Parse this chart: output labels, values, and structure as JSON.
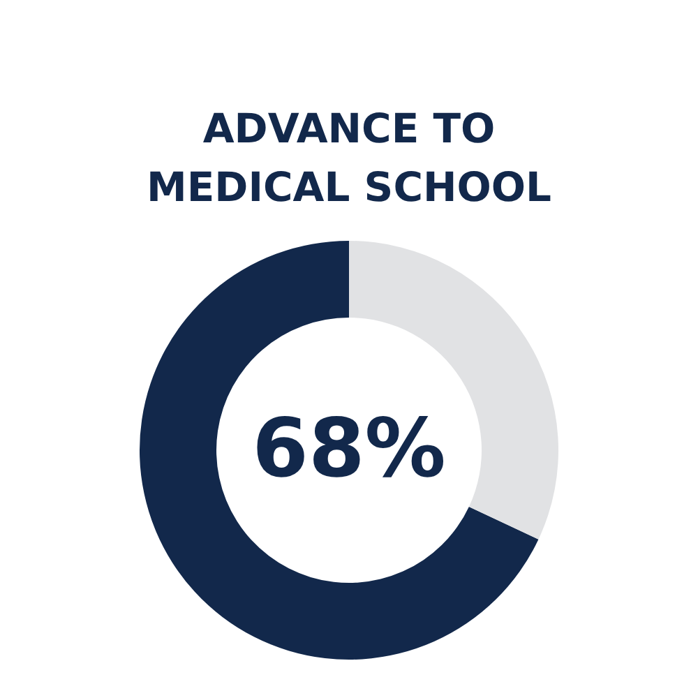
{
  "chart_data": {
    "type": "donut",
    "title": "ADVANCE TO\nMEDICAL SCHOOL",
    "categories": [
      null,
      null
    ],
    "values": [
      68,
      32
    ],
    "colors": [
      "#12284b",
      "#e1e2e4"
    ],
    "annotations": [
      "68%"
    ]
  }
}
